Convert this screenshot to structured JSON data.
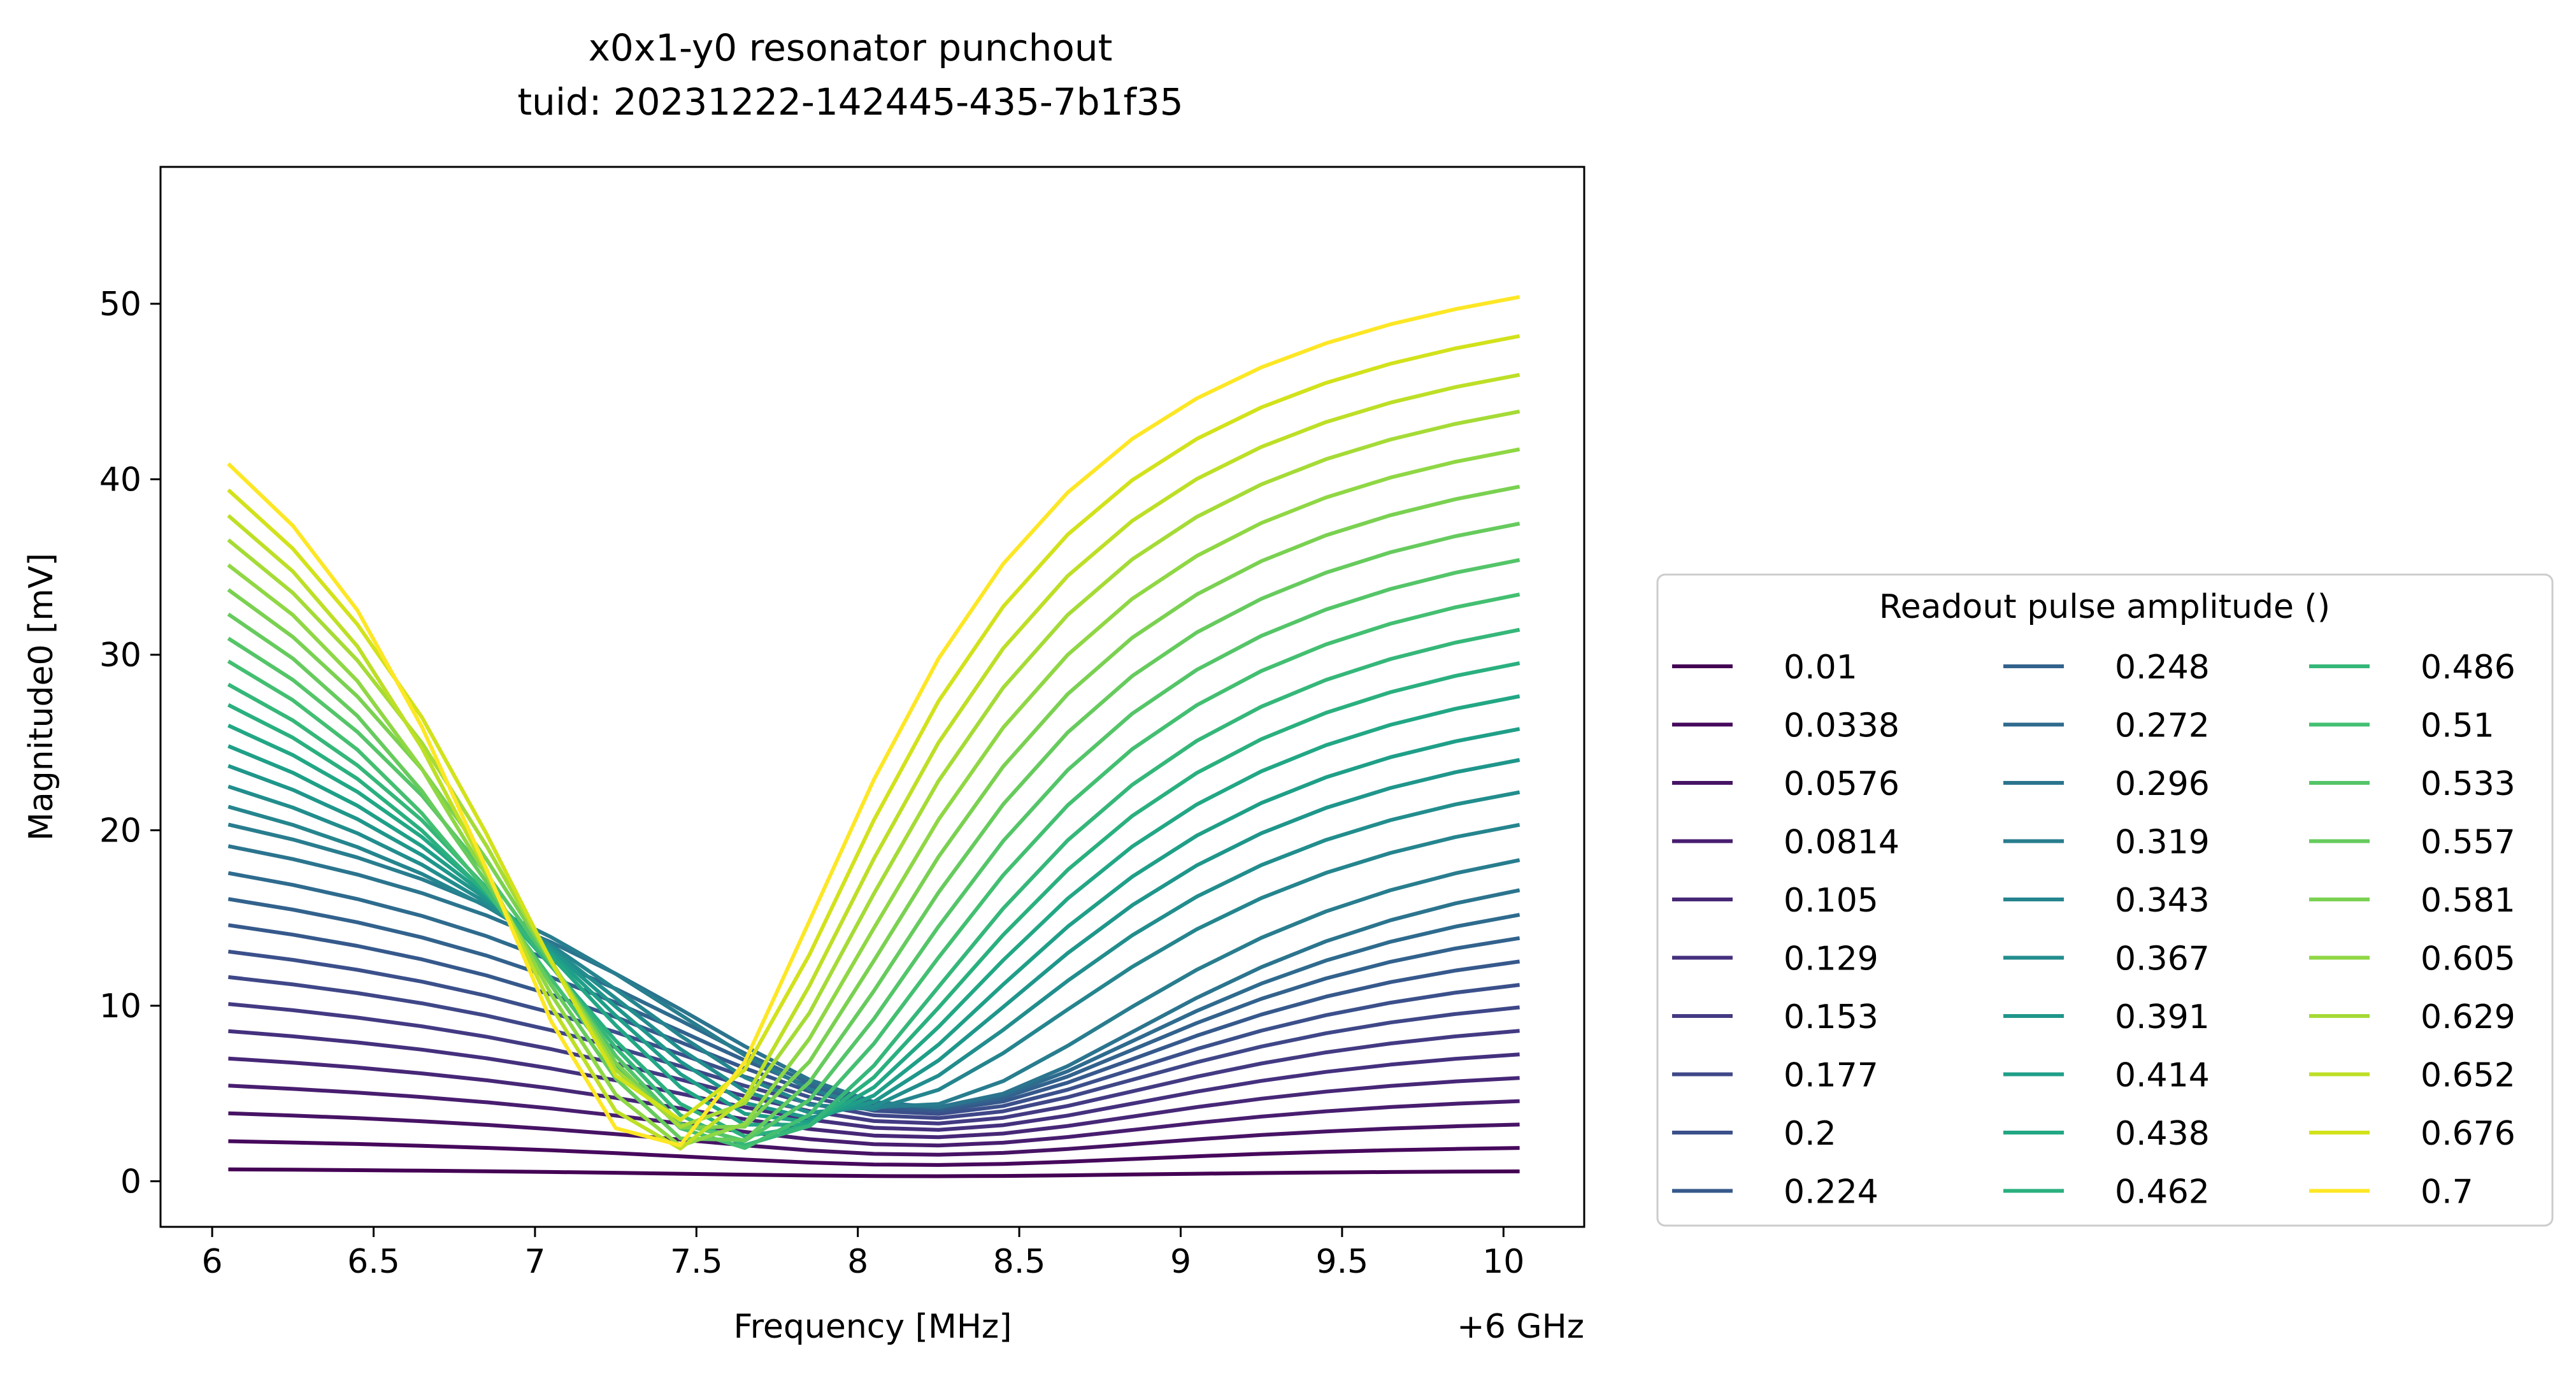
{
  "chart_data": {
    "type": "line",
    "title": "x0x1-y0 resonator punchout",
    "subtitle": "tuid: 20231222-142445-435-7b1f35",
    "xlabel": "Frequency [MHz]",
    "x_offset_label": "+6 GHz",
    "ylabel": "Magnitude0 [mV]",
    "xlim": [
      5.84,
      10.25
    ],
    "ylim": [
      -2.6,
      57.8
    ],
    "x_ticks": [
      "6",
      "6.5",
      "7",
      "7.5",
      "8",
      "8.5",
      "9",
      "9.5",
      "10"
    ],
    "y_ticks": [
      "0",
      "10",
      "20",
      "30",
      "40",
      "50"
    ],
    "grid": false,
    "legend_title": "Readout pulse amplitude ()",
    "legend_position": "outside-right",
    "legend_columns": 3,
    "colormap": "viridis",
    "colormap_stops": [
      "#440154",
      "#472c7a",
      "#3b518b",
      "#2c718e",
      "#21908d",
      "#27ad81",
      "#5cc863",
      "#aadc32",
      "#fde725"
    ],
    "frequency_range": [
      6.05,
      10.05
    ],
    "frequency_points": 21,
    "series": [
      {
        "name": "0.01",
        "color": "#440154"
      },
      {
        "name": "0.0338",
        "color": "#46085c"
      },
      {
        "name": "0.0576",
        "color": "#471365"
      },
      {
        "name": "0.0814",
        "color": "#481d6f"
      },
      {
        "name": "0.105",
        "color": "#472777"
      },
      {
        "name": "0.129",
        "color": "#45307e"
      },
      {
        "name": "0.153",
        "color": "#433a83"
      },
      {
        "name": "0.177",
        "color": "#3f4788"
      },
      {
        "name": "0.2",
        "color": "#3b508b"
      },
      {
        "name": "0.224",
        "color": "#36598c"
      },
      {
        "name": "0.248",
        "color": "#32628d"
      },
      {
        "name": "0.272",
        "color": "#2e6b8e"
      },
      {
        "name": "0.296",
        "color": "#2b748e"
      },
      {
        "name": "0.319",
        "color": "#287d8e"
      },
      {
        "name": "0.343",
        "color": "#25858e"
      },
      {
        "name": "0.367",
        "color": "#228d8d"
      },
      {
        "name": "0.391",
        "color": "#1f968b"
      },
      {
        "name": "0.414",
        "color": "#1f9f88"
      },
      {
        "name": "0.438",
        "color": "#22a785"
      },
      {
        "name": "0.462",
        "color": "#2ab07f"
      },
      {
        "name": "0.486",
        "color": "#35b779"
      },
      {
        "name": "0.51",
        "color": "#43bf71"
      },
      {
        "name": "0.533",
        "color": "#54c568"
      },
      {
        "name": "0.557",
        "color": "#66cb5d"
      },
      {
        "name": "0.581",
        "color": "#7ad151"
      },
      {
        "name": "0.605",
        "color": "#8fd744"
      },
      {
        "name": "0.629",
        "color": "#a5db36"
      },
      {
        "name": "0.652",
        "color": "#bddf26"
      },
      {
        "name": "0.676",
        "color": "#d2e21b"
      },
      {
        "name": "0.7",
        "color": "#fde725"
      }
    ]
  }
}
